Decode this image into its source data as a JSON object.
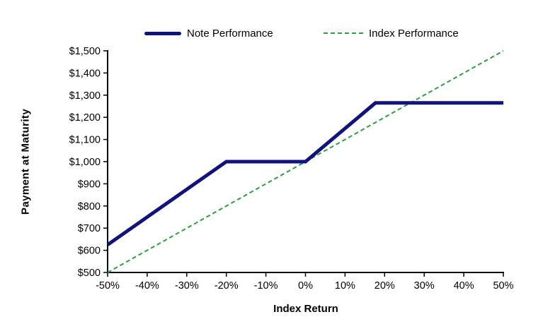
{
  "chart_data": {
    "type": "line",
    "title": "",
    "xlabel": "Index Return",
    "ylabel": "Payment at Maturity",
    "xlim": [
      -50,
      50
    ],
    "ylim": [
      500,
      1500
    ],
    "grid": false,
    "legend_position": "top",
    "background_color": "#ffffff",
    "axis_color": "#000000",
    "x_ticks": [
      {
        "value": -50,
        "label": "-50%"
      },
      {
        "value": -40,
        "label": "-40%"
      },
      {
        "value": -30,
        "label": "-30%"
      },
      {
        "value": -20,
        "label": "-20%"
      },
      {
        "value": -10,
        "label": "-10%"
      },
      {
        "value": 0,
        "label": "0%"
      },
      {
        "value": 10,
        "label": "10%"
      },
      {
        "value": 20,
        "label": "20%"
      },
      {
        "value": 30,
        "label": "30%"
      },
      {
        "value": 40,
        "label": "40%"
      },
      {
        "value": 50,
        "label": "50%"
      }
    ],
    "y_ticks": [
      {
        "value": 500,
        "label": "$500"
      },
      {
        "value": 600,
        "label": "$600"
      },
      {
        "value": 700,
        "label": "$700"
      },
      {
        "value": 800,
        "label": "$800"
      },
      {
        "value": 900,
        "label": "$900"
      },
      {
        "value": 1000,
        "label": "$1,000"
      },
      {
        "value": 1100,
        "label": "$1,100"
      },
      {
        "value": 1200,
        "label": "$1,200"
      },
      {
        "value": 1300,
        "label": "$1,300"
      },
      {
        "value": 1400,
        "label": "$1,400"
      },
      {
        "value": 1500,
        "label": "$1,500"
      }
    ],
    "series": [
      {
        "name": "Index Performance",
        "color": "#2f9e41",
        "line_style": "dashed",
        "line_width": 2,
        "points": [
          [
            -50,
            500
          ],
          [
            50,
            1500
          ]
        ]
      },
      {
        "name": "Note Performance",
        "color": "#10127e",
        "line_style": "solid",
        "line_width": 5,
        "points": [
          [
            -50,
            625
          ],
          [
            -20,
            1000
          ],
          [
            0,
            1000
          ],
          [
            17.67,
            1265
          ],
          [
            50,
            1265
          ]
        ]
      }
    ]
  }
}
